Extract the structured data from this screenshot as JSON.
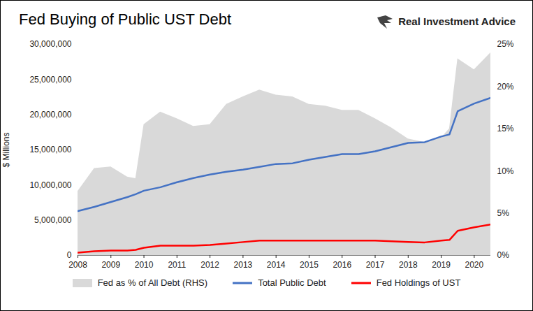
{
  "chart_data": {
    "type": "line",
    "title": "Fed Buying of Public UST Debt",
    "annotations": [
      "Real Investment Advice"
    ],
    "y_label": "$ Millions",
    "x": [
      2008,
      2008.5,
      2009,
      2009.5,
      2009.75,
      2010,
      2010.5,
      2011,
      2011.5,
      2012,
      2012.5,
      2013,
      2013.5,
      2014,
      2014.5,
      2015,
      2015.5,
      2016,
      2016.5,
      2017,
      2017.5,
      2018,
      2018.5,
      2019,
      2019.25,
      2019.5,
      2020,
      2020.5
    ],
    "xlim": [
      2008,
      2020.5
    ],
    "xticks": [
      2008,
      2009,
      2010,
      2011,
      2012,
      2013,
      2014,
      2015,
      2016,
      2017,
      2018,
      2019,
      2020
    ],
    "ylim": [
      0,
      30000000
    ],
    "yticks": [
      {
        "value": 0,
        "label": "0"
      },
      {
        "value": 5000000,
        "label": "5,000,000"
      },
      {
        "value": 10000000,
        "label": "10,000,000"
      },
      {
        "value": 15000000,
        "label": "15,000,000"
      },
      {
        "value": 20000000,
        "label": "20,000,000"
      },
      {
        "value": 25000000,
        "label": "25,000,000"
      },
      {
        "value": 30000000,
        "label": "30,000,000"
      }
    ],
    "y2lim": [
      0,
      25
    ],
    "y2ticks": [
      {
        "value": 0,
        "label": "0%"
      },
      {
        "value": 5,
        "label": "5%"
      },
      {
        "value": 10,
        "label": "10%"
      },
      {
        "value": 15,
        "label": "15%"
      },
      {
        "value": 20,
        "label": "20%"
      },
      {
        "value": 25,
        "label": "25%"
      }
    ],
    "grid": false,
    "legend": "bottom",
    "series": [
      {
        "name": "Fed as % of All Debt (RHS)",
        "type": "area",
        "axis": "y2",
        "color": "#d9d9d9",
        "values": [
          7.6,
          10.3,
          10.5,
          9.3,
          9.1,
          15.5,
          17.0,
          16.2,
          15.3,
          15.5,
          17.9,
          18.8,
          19.6,
          19.0,
          18.8,
          17.9,
          17.7,
          17.2,
          17.2,
          16.2,
          15.1,
          13.8,
          13.4,
          13.9,
          15.0,
          23.3,
          22.0,
          24.0
        ]
      },
      {
        "name": "Total Public Debt",
        "type": "line",
        "color": "#4472c4",
        "values": [
          6300000,
          6900000,
          7600000,
          8300000,
          8700000,
          9200000,
          9700000,
          10400000,
          11000000,
          11500000,
          11900000,
          12200000,
          12600000,
          13000000,
          13100000,
          13600000,
          14000000,
          14400000,
          14400000,
          14800000,
          15400000,
          16000000,
          16100000,
          16900000,
          17200000,
          20500000,
          21600000,
          22400000
        ]
      },
      {
        "name": "Fed Holdings of UST",
        "type": "line",
        "color": "#ff0000",
        "values": [
          400000,
          600000,
          700000,
          700000,
          800000,
          1100000,
          1400000,
          1400000,
          1400000,
          1500000,
          1700000,
          1900000,
          2100000,
          2100000,
          2100000,
          2100000,
          2100000,
          2100000,
          2100000,
          2100000,
          2000000,
          1900000,
          1850000,
          2100000,
          2200000,
          3500000,
          4000000,
          4400000
        ]
      }
    ]
  }
}
